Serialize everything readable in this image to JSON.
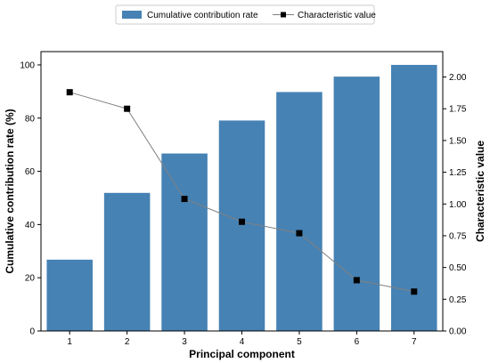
{
  "chart_data": {
    "type": "bar",
    "categories": [
      "1",
      "2",
      "3",
      "4",
      "5",
      "6",
      "7"
    ],
    "xlabel": "Principal component",
    "ylabel": "Cumulative contribution rate (%)",
    "y2label": "Characteristic value",
    "ylim": [
      0,
      105
    ],
    "y2lim": [
      0,
      2.2
    ],
    "yticks": [
      0,
      20,
      40,
      60,
      80,
      100
    ],
    "y2ticks": [
      "0.00",
      "0.25",
      "0.50",
      "0.75",
      "1.00",
      "1.25",
      "1.50",
      "1.75",
      "2.00"
    ],
    "grid": false,
    "legend_position": "top-center",
    "series": [
      {
        "name": "Cumulative contribution rate",
        "type": "bar",
        "axis": "left",
        "color": "#4682b4",
        "values": [
          26.8,
          51.9,
          66.7,
          79.1,
          89.8,
          95.6,
          100.0
        ]
      },
      {
        "name": "Characteristic value",
        "type": "line",
        "axis": "right",
        "line_color": "#808080",
        "marker_color": "#000000",
        "marker": "square",
        "values": [
          1.88,
          1.75,
          1.04,
          0.86,
          0.77,
          0.4,
          0.31
        ]
      }
    ]
  }
}
